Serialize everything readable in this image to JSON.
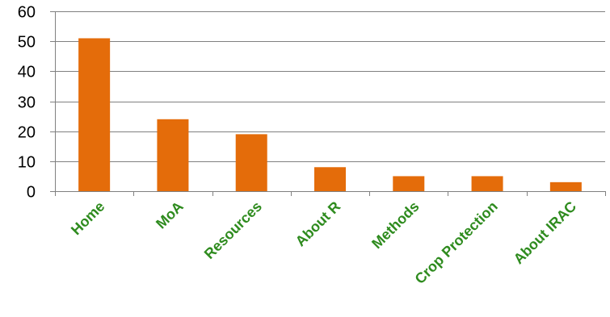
{
  "chart_data": {
    "type": "bar",
    "categories": [
      "Home",
      "MoA",
      "Resources",
      "About R",
      "Methods",
      "Crop Protection",
      "About IRAC"
    ],
    "values": [
      51,
      24,
      19,
      8,
      5,
      5,
      3
    ],
    "ylim": [
      0,
      60
    ],
    "yticks": [
      0,
      10,
      20,
      30,
      40,
      50,
      60
    ],
    "grid": true,
    "legend": "none",
    "colors": {
      "bar": "#E46C0A",
      "category_label": "#2E8B1E",
      "gridline": "#808080",
      "axis": "#808080",
      "tick_label": "#000000"
    }
  }
}
